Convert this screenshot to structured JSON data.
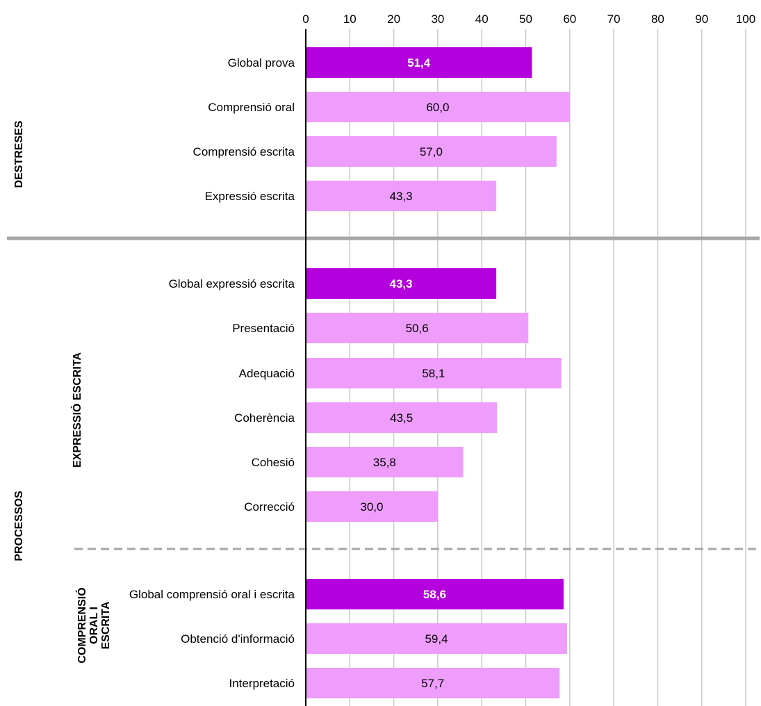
{
  "chart_data": {
    "type": "bar",
    "orientation": "horizontal",
    "xlim": [
      0,
      100
    ],
    "x_ticks": [
      0,
      10,
      20,
      30,
      40,
      50,
      60,
      70,
      80,
      90,
      100
    ],
    "x_axis_position": "top",
    "grid": true,
    "legend": "none",
    "colors": {
      "highlight": "#b400dd",
      "normal": "#ee9dfc",
      "gridline": "#c8c8c8",
      "separator": "#a6a6a6"
    },
    "categories": [
      "Global prova",
      "Comprensió oral",
      "Comprensió escrita",
      "Expressió escrita",
      "Global expressió escrita",
      "Presentació",
      "Adequació",
      "Coherència",
      "Cohesió",
      "Correcció",
      "Global comprensió oral i escrita",
      "Obtenció d'informació",
      "Interpretació"
    ],
    "values": [
      51.4,
      60.0,
      57.0,
      43.3,
      43.3,
      50.6,
      58.1,
      43.5,
      35.8,
      30.0,
      58.6,
      59.4,
      57.7
    ],
    "value_labels": [
      "51,4",
      "60,0",
      "57,0",
      "43,3",
      "43,3",
      "50,6",
      "58,1",
      "43,5",
      "35,8",
      "30,0",
      "58,6",
      "59,4",
      "57,7"
    ],
    "highlighted": [
      true,
      false,
      false,
      false,
      true,
      false,
      false,
      false,
      false,
      false,
      true,
      false,
      false
    ],
    "groups": [
      {
        "label": "DESTRESES",
        "lines": [
          "DESTRESES"
        ]
      },
      {
        "label": "PROCESSOS",
        "lines": [
          "PROCESSOS"
        ]
      },
      {
        "label": "EXPRESSIÓ  ESCRITA",
        "lines": [
          "EXPRESSIÓ  ESCRITA"
        ]
      },
      {
        "label": "COMPRENSIÓ ORAL I ESCRITA",
        "lines": [
          "COMPRENSIÓ",
          "ORAL I",
          "ESCRITA"
        ]
      }
    ]
  }
}
